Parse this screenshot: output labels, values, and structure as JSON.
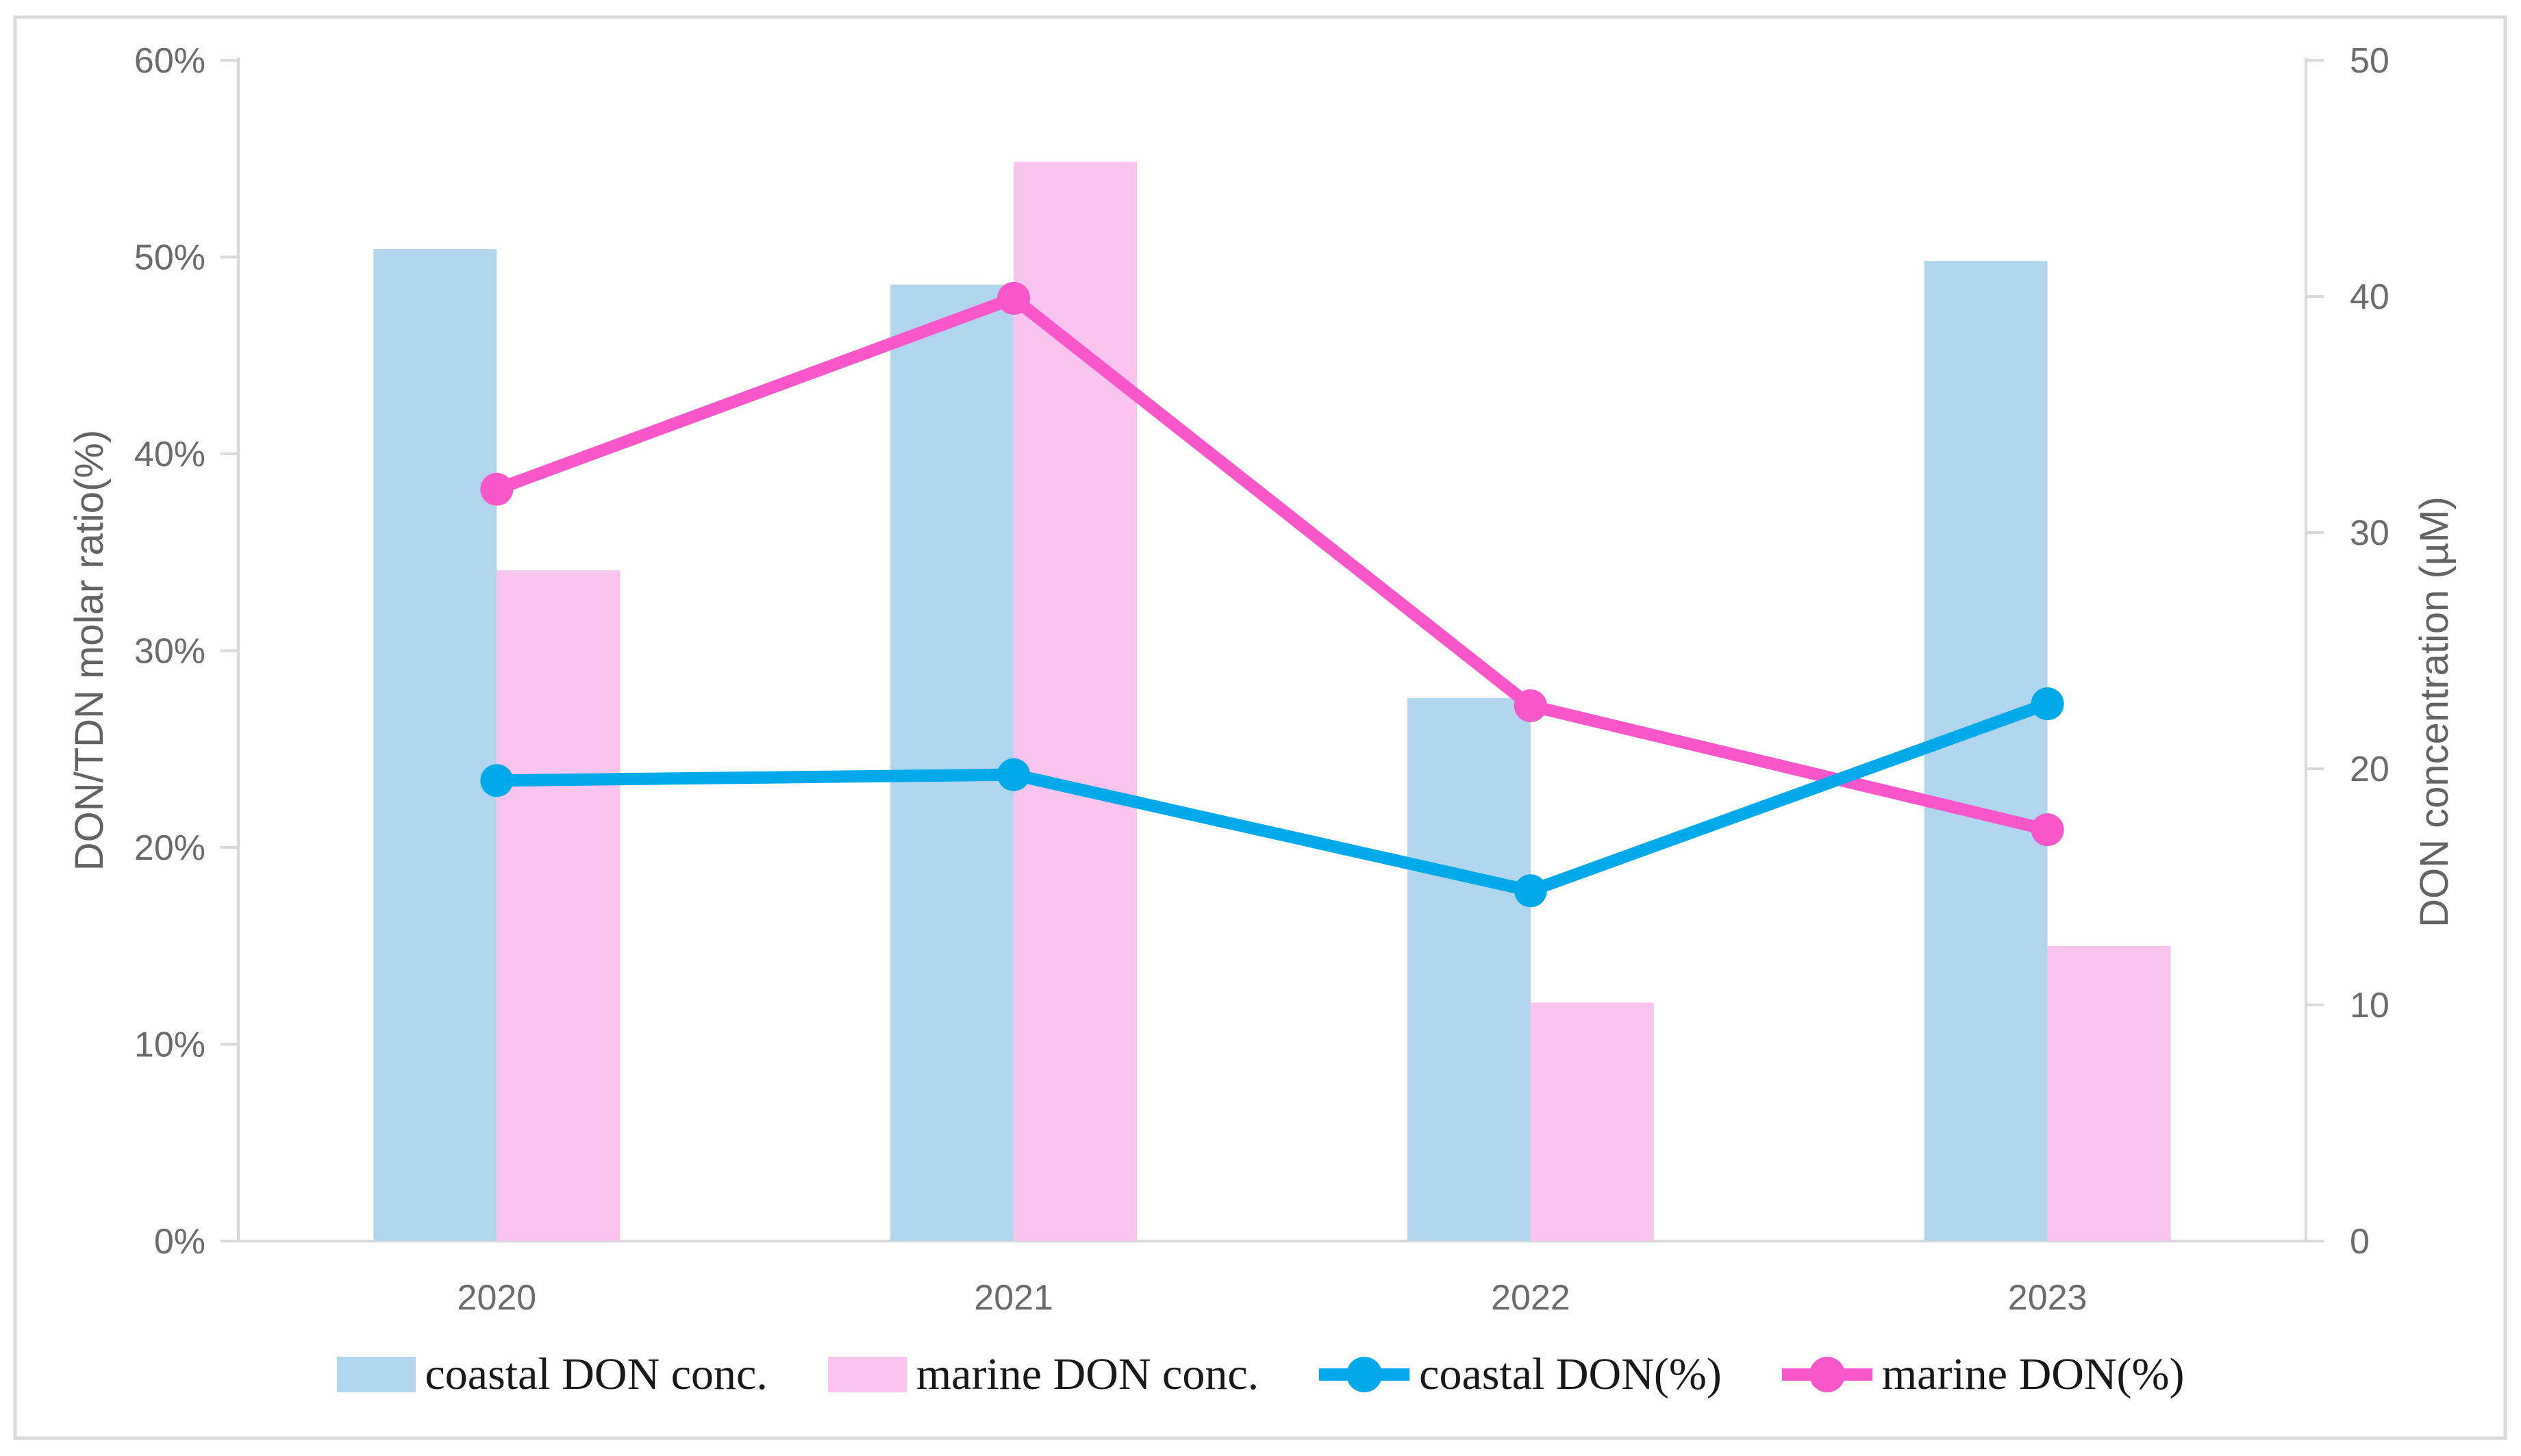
{
  "figure": {
    "background": "#ffffff",
    "border_color": "#d9d9d9"
  },
  "styles": {
    "axis_line_color": "#d9d9d9",
    "tick_label_color": "#6b6b6b",
    "axis_title_color": "#636363",
    "legend_text_color": "#181818"
  },
  "chart_data": {
    "type": "combo-bar-line-dual-axis",
    "title": "",
    "grid": false,
    "categories": [
      "2020",
      "2021",
      "2022",
      "2023"
    ],
    "bar_series": [
      {
        "name": "coastal DON conc.",
        "axis": "right",
        "color": "#b0d5ec",
        "values": [
          42.0,
          40.5,
          23.0,
          41.5
        ]
      },
      {
        "name": "marine DON conc.",
        "axis": "right",
        "color": "#fac4ee",
        "values": [
          28.4,
          45.7,
          10.1,
          12.5
        ]
      }
    ],
    "line_series": [
      {
        "name": "marine DON(%)",
        "axis": "left",
        "color": "#f956c9",
        "values": [
          38.2,
          47.9,
          27.2,
          20.9
        ]
      },
      {
        "name": "coastal DON(%)",
        "axis": "left",
        "color": "#00a9e9",
        "values": [
          23.4,
          23.7,
          17.8,
          27.3
        ]
      }
    ],
    "left_axis": {
      "title": "DON/TDN molar ratio(%)",
      "min": 0,
      "max": 60,
      "step": 10,
      "tick_labels": [
        "0%",
        "10%",
        "20%",
        "30%",
        "40%",
        "50%",
        "60%"
      ]
    },
    "right_axis": {
      "title": "DON concentration (µM)",
      "min": 0,
      "max": 50,
      "step": 10,
      "tick_labels": [
        "0",
        "10",
        "20",
        "30",
        "40",
        "50"
      ]
    },
    "x_axis": {
      "labels": [
        "2020",
        "2021",
        "2022",
        "2023"
      ]
    },
    "legend": {
      "position": "bottom",
      "items": [
        {
          "label": "coastal DON conc.",
          "glyph": "swatch",
          "color": "#b0d5ec"
        },
        {
          "label": "marine DON conc.",
          "glyph": "swatch",
          "color": "#fac4ee"
        },
        {
          "label": "coastal DON(%)",
          "glyph": "line-marker",
          "color": "#00a9e9"
        },
        {
          "label": "marine DON(%)",
          "glyph": "line-marker",
          "color": "#f956c9"
        }
      ]
    }
  }
}
